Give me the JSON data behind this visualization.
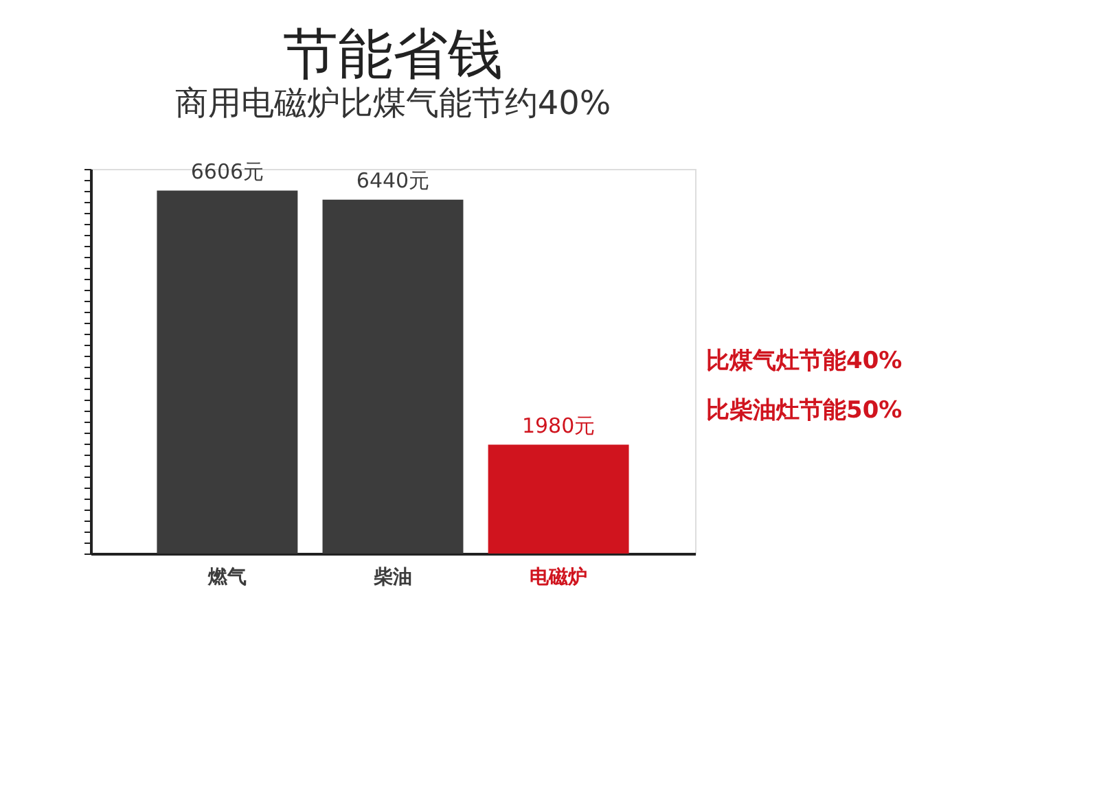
{
  "chart_data": {
    "type": "bar",
    "title": "节能省钱",
    "subtitle": "商用电磁炉比煤气能节约40%",
    "categories": [
      "燃气",
      "柴油",
      "电磁炉"
    ],
    "values": [
      6606,
      6440,
      1980
    ],
    "value_labels": [
      "6606元",
      "6440元",
      "1980元"
    ],
    "colors": [
      "#3c3c3c",
      "#3c3c3c",
      "#d0141e"
    ],
    "annotations": [
      "比煤气灶节能40%",
      "比柴油灶节能50%"
    ],
    "tick_labels": "x",
    "grid": false
  }
}
